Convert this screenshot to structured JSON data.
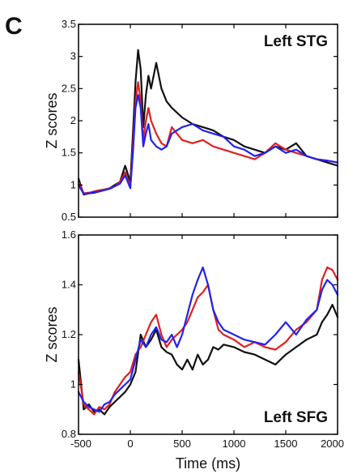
{
  "panel_label": "C",
  "chart_data": [
    {
      "type": "line",
      "title": "Left STG",
      "xlabel": "",
      "ylabel": "Z scores",
      "xlim": [
        -500,
        2000
      ],
      "ylim": [
        0.5,
        3.5
      ],
      "xticks": [
        -500,
        0,
        500,
        1000,
        1500,
        2000
      ],
      "xtick_labels": [],
      "yticks": [
        0.5,
        1,
        1.5,
        2,
        2.5,
        3,
        3.5
      ],
      "ytick_labels": [
        "0.5",
        "1",
        "1.5",
        "2",
        "2.5",
        "3",
        "3.5"
      ],
      "grid": false,
      "series": [
        {
          "color": "#111111",
          "x": [
            -500,
            -450,
            -400,
            -350,
            -300,
            -250,
            -200,
            -150,
            -100,
            -50,
            0,
            25,
            50,
            75,
            100,
            125,
            150,
            175,
            200,
            250,
            300,
            350,
            400,
            500,
            600,
            700,
            800,
            900,
            1000,
            1100,
            1200,
            1300,
            1400,
            1500,
            1600,
            1700,
            1800,
            1900,
            2000
          ],
          "y": [
            1.1,
            0.85,
            0.87,
            0.88,
            0.9,
            0.93,
            0.95,
            1.0,
            1.05,
            1.3,
            1.05,
            1.8,
            2.6,
            3.1,
            2.8,
            1.9,
            2.4,
            2.7,
            2.5,
            2.9,
            2.5,
            2.3,
            2.2,
            2.05,
            1.95,
            1.9,
            1.85,
            1.75,
            1.7,
            1.6,
            1.55,
            1.5,
            1.6,
            1.55,
            1.65,
            1.45,
            1.4,
            1.35,
            1.3
          ]
        },
        {
          "color": "#e02020",
          "x": [
            -500,
            -450,
            -400,
            -350,
            -300,
            -250,
            -200,
            -150,
            -100,
            -50,
            0,
            25,
            50,
            75,
            100,
            125,
            150,
            175,
            200,
            250,
            300,
            350,
            400,
            500,
            600,
            700,
            800,
            900,
            1000,
            1100,
            1200,
            1300,
            1400,
            1500,
            1600,
            1700,
            1800,
            1900,
            2000
          ],
          "y": [
            1.05,
            0.87,
            0.88,
            0.9,
            0.92,
            0.93,
            0.95,
            0.98,
            1.05,
            1.2,
            0.98,
            1.6,
            2.3,
            2.6,
            2.3,
            1.7,
            2.0,
            2.2,
            2.0,
            1.8,
            1.65,
            1.6,
            1.9,
            1.7,
            1.65,
            1.7,
            1.6,
            1.55,
            1.5,
            1.45,
            1.4,
            1.5,
            1.65,
            1.55,
            1.5,
            1.45,
            1.4,
            1.38,
            1.35
          ]
        },
        {
          "color": "#2222ee",
          "x": [
            -500,
            -450,
            -400,
            -350,
            -300,
            -250,
            -200,
            -150,
            -100,
            -50,
            0,
            25,
            50,
            75,
            100,
            125,
            150,
            175,
            200,
            250,
            300,
            350,
            400,
            500,
            600,
            700,
            800,
            900,
            1000,
            1100,
            1200,
            1300,
            1400,
            1500,
            1600,
            1700,
            1800,
            1900,
            2000
          ],
          "y": [
            1.0,
            0.86,
            0.87,
            0.89,
            0.9,
            0.92,
            0.94,
            0.98,
            1.02,
            1.15,
            0.95,
            1.5,
            2.2,
            2.4,
            2.2,
            1.6,
            1.8,
            1.95,
            1.7,
            1.6,
            1.55,
            1.6,
            1.8,
            1.9,
            1.95,
            1.85,
            1.8,
            1.75,
            1.6,
            1.55,
            1.45,
            1.5,
            1.6,
            1.5,
            1.55,
            1.45,
            1.4,
            1.38,
            1.35
          ]
        }
      ]
    },
    {
      "type": "line",
      "title": "Left SFG",
      "xlabel": "Time (ms)",
      "ylabel": "Z scores",
      "xlim": [
        -500,
        2000
      ],
      "ylim": [
        0.8,
        1.6
      ],
      "xticks": [
        -500,
        0,
        500,
        1000,
        1500,
        2000
      ],
      "xtick_labels": [
        "-500",
        "0",
        "500",
        "1000",
        "1500",
        "2000"
      ],
      "yticks": [
        0.8,
        1,
        1.2,
        1.4,
        1.6
      ],
      "ytick_labels": [
        "0.8",
        "1",
        "1.2",
        "1.4",
        "1.6"
      ],
      "grid": false,
      "series": [
        {
          "color": "#111111",
          "x": [
            -500,
            -450,
            -400,
            -350,
            -300,
            -250,
            -200,
            -150,
            -100,
            -50,
            0,
            50,
            100,
            150,
            200,
            250,
            300,
            350,
            400,
            450,
            500,
            550,
            600,
            650,
            700,
            750,
            800,
            850,
            900,
            1000,
            1100,
            1200,
            1300,
            1400,
            1500,
            1600,
            1700,
            1800,
            1850,
            1900,
            1950,
            2000
          ],
          "y": [
            1.1,
            0.9,
            0.92,
            0.89,
            0.9,
            0.88,
            0.91,
            0.93,
            0.95,
            0.97,
            1.0,
            1.05,
            1.2,
            1.15,
            1.18,
            1.22,
            1.15,
            1.13,
            1.12,
            1.08,
            1.06,
            1.1,
            1.06,
            1.12,
            1.08,
            1.1,
            1.15,
            1.14,
            1.16,
            1.15,
            1.13,
            1.12,
            1.1,
            1.08,
            1.12,
            1.15,
            1.18,
            1.2,
            1.25,
            1.28,
            1.32,
            1.27
          ]
        },
        {
          "color": "#e02020",
          "x": [
            -500,
            -450,
            -400,
            -350,
            -300,
            -250,
            -200,
            -150,
            -100,
            -50,
            0,
            50,
            100,
            150,
            200,
            250,
            300,
            350,
            400,
            450,
            500,
            550,
            600,
            650,
            700,
            750,
            800,
            850,
            900,
            1000,
            1100,
            1200,
            1300,
            1400,
            1500,
            1600,
            1700,
            1800,
            1850,
            1900,
            1950,
            2000
          ],
          "y": [
            1.05,
            0.92,
            0.9,
            0.88,
            0.91,
            0.9,
            0.92,
            0.97,
            1.0,
            1.03,
            1.05,
            1.12,
            1.15,
            1.2,
            1.25,
            1.28,
            1.2,
            1.15,
            1.18,
            1.2,
            1.22,
            1.25,
            1.3,
            1.35,
            1.37,
            1.4,
            1.3,
            1.22,
            1.2,
            1.18,
            1.15,
            1.17,
            1.15,
            1.14,
            1.17,
            1.22,
            1.25,
            1.3,
            1.42,
            1.47,
            1.46,
            1.42
          ]
        },
        {
          "color": "#2222ee",
          "x": [
            -500,
            -450,
            -400,
            -350,
            -300,
            -250,
            -200,
            -150,
            -100,
            -50,
            0,
            50,
            100,
            150,
            200,
            250,
            300,
            350,
            400,
            450,
            500,
            550,
            600,
            650,
            700,
            750,
            800,
            850,
            900,
            1000,
            1100,
            1200,
            1300,
            1400,
            1500,
            1600,
            1700,
            1800,
            1850,
            1900,
            1950,
            2000
          ],
          "y": [
            0.97,
            0.93,
            0.91,
            0.9,
            0.89,
            0.92,
            0.93,
            0.96,
            0.98,
            1.0,
            1.02,
            1.1,
            1.18,
            1.15,
            1.2,
            1.23,
            1.18,
            1.17,
            1.2,
            1.15,
            1.2,
            1.28,
            1.36,
            1.42,
            1.47,
            1.4,
            1.3,
            1.25,
            1.22,
            1.2,
            1.18,
            1.17,
            1.16,
            1.2,
            1.25,
            1.2,
            1.26,
            1.3,
            1.38,
            1.42,
            1.4,
            1.36
          ]
        }
      ]
    }
  ]
}
